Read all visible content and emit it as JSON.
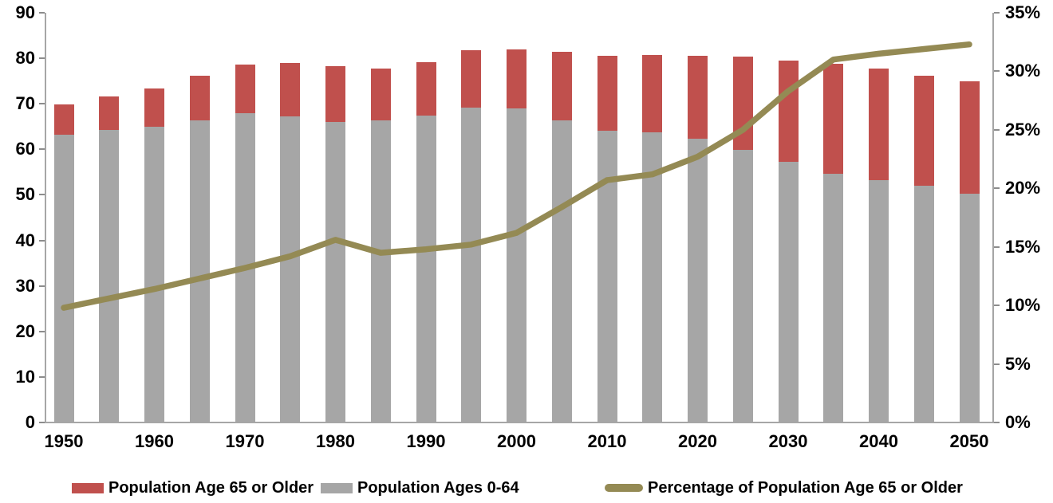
{
  "chart_data": {
    "type": "bar",
    "subtype": "stacked-column-with-line-dual-axis",
    "title": "",
    "grid": "off",
    "legend_position": "bottom",
    "background": "#ffffff",
    "axis_color": "#a6a6a6",
    "tick_color": "#8c8c8c",
    "years": [
      1950,
      1955,
      1960,
      1965,
      1970,
      1975,
      1980,
      1985,
      1990,
      1995,
      2000,
      2005,
      2010,
      2015,
      2020,
      2025,
      2030,
      2035,
      2040,
      2045,
      2050
    ],
    "x_tick_labels": [
      "1950",
      "1960",
      "1970",
      "1980",
      "1990",
      "2000",
      "2010",
      "2020",
      "2030",
      "2040",
      "2050"
    ],
    "left_axis": {
      "min": 0,
      "max": 90,
      "step": 10,
      "tick_labels": [
        "0",
        "10",
        "20",
        "30",
        "40",
        "50",
        "60",
        "70",
        "80",
        "90"
      ]
    },
    "right_axis": {
      "min": 0,
      "max": 35,
      "step": 5,
      "tick_labels": [
        "0%",
        "5%",
        "10%",
        "15%",
        "20%",
        "25%",
        "30%",
        "35%"
      ]
    },
    "series": [
      {
        "name": "Population Age 65 or Older",
        "type": "bar",
        "role": "stack-top",
        "color": "#C0504D",
        "values": [
          6.7,
          7.4,
          8.4,
          9.7,
          10.8,
          11.7,
          12.3,
          11.4,
          11.8,
          12.6,
          13.0,
          15.0,
          16.6,
          17.1,
          18.3,
          20.5,
          22.3,
          24.1,
          24.4,
          24.2,
          24.6
        ]
      },
      {
        "name": "Population Ages 0-64",
        "type": "bar",
        "role": "stack-bottom",
        "color": "#A6A6A6",
        "values": [
          63.2,
          64.2,
          64.9,
          66.4,
          67.9,
          67.3,
          66.0,
          66.4,
          67.4,
          69.2,
          69.0,
          66.4,
          64.0,
          63.7,
          62.3,
          59.8,
          57.2,
          54.7,
          53.3,
          52.0,
          50.3
        ]
      },
      {
        "name": "Percentage of Population Age 65 or Older",
        "type": "line",
        "role": "line-right-axis",
        "color": "#948A54",
        "values": [
          9.8,
          10.6,
          11.4,
          12.3,
          13.2,
          14.2,
          15.6,
          14.5,
          14.8,
          15.2,
          16.2,
          18.4,
          20.7,
          21.2,
          22.7,
          25.0,
          28.3,
          31.0,
          31.5,
          31.9,
          32.3
        ]
      }
    ],
    "stacked_totals": [
      69.9,
      71.6,
      73.3,
      76.1,
      78.7,
      79.0,
      78.3,
      77.8,
      79.2,
      81.8,
      82.0,
      81.4,
      80.6,
      80.8,
      80.6,
      80.3,
      79.5,
      78.8,
      77.7,
      76.2,
      74.9
    ]
  }
}
